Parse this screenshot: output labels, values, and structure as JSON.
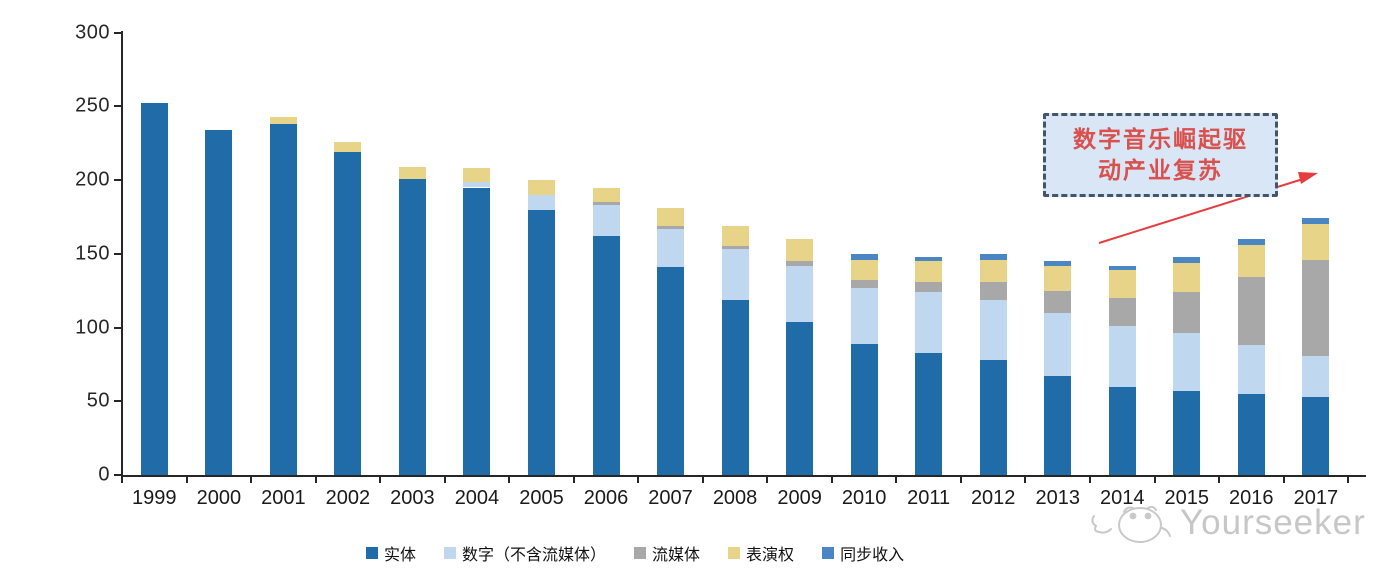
{
  "chart_data": {
    "type": "bar",
    "stacked": true,
    "title": "",
    "xlabel": "",
    "ylabel": "",
    "ylim": [
      0,
      300
    ],
    "yticks": [
      0,
      50,
      100,
      150,
      200,
      250,
      300
    ],
    "grid": false,
    "legend_position": "bottom",
    "categories": [
      "1999",
      "2000",
      "2001",
      "2002",
      "2003",
      "2004",
      "2005",
      "2006",
      "2007",
      "2008",
      "2009",
      "2010",
      "2011",
      "2012",
      "2013",
      "2014",
      "2015",
      "2016",
      "2017"
    ],
    "series": [
      {
        "name": "实体",
        "color": "#1f6ca9",
        "values": [
          252,
          234,
          238,
          219,
          201,
          195,
          180,
          162,
          141,
          119,
          104,
          89,
          83,
          78,
          67,
          60,
          57,
          55,
          53
        ]
      },
      {
        "name": "数字（不含流媒体）",
        "color": "#bfd8ef",
        "values": [
          0,
          0,
          0,
          0,
          0,
          4,
          10,
          21,
          26,
          34,
          38,
          38,
          41,
          41,
          43,
          41,
          39,
          33,
          28
        ]
      },
      {
        "name": "流媒体",
        "color": "#a8a8a8",
        "values": [
          0,
          0,
          0,
          0,
          0,
          0,
          0,
          2,
          2,
          2,
          3,
          5,
          7,
          12,
          15,
          19,
          28,
          46,
          65
        ]
      },
      {
        "name": "表演权",
        "color": "#e8d489",
        "values": [
          0,
          0,
          5,
          7,
          8,
          9,
          10,
          10,
          12,
          14,
          15,
          14,
          14,
          15,
          17,
          19,
          20,
          22,
          24
        ]
      },
      {
        "name": "同步收入",
        "color": "#4a86c4",
        "values": [
          0,
          0,
          0,
          0,
          0,
          0,
          0,
          0,
          0,
          0,
          0,
          4,
          3,
          4,
          3,
          3,
          4,
          4,
          4
        ]
      }
    ],
    "totals": [
      252,
      234,
      243,
      226,
      209,
      208,
      200,
      195,
      181,
      169,
      160,
      150,
      148,
      150,
      145,
      142,
      148,
      160,
      174
    ]
  },
  "annotation": {
    "line1": "数字音乐崛起驱",
    "line2": "动产业复苏",
    "box_fill": "#d8e6f5",
    "box_border": "#44546a",
    "text_color": "#d9504c",
    "arrow_color": "#e63e3e"
  },
  "watermark": {
    "brand": "Yourseeker",
    "color": "#c7c7c7"
  },
  "colors": {
    "axis": "#262626",
    "tick_label": "#262626",
    "background": "#ffffff"
  }
}
